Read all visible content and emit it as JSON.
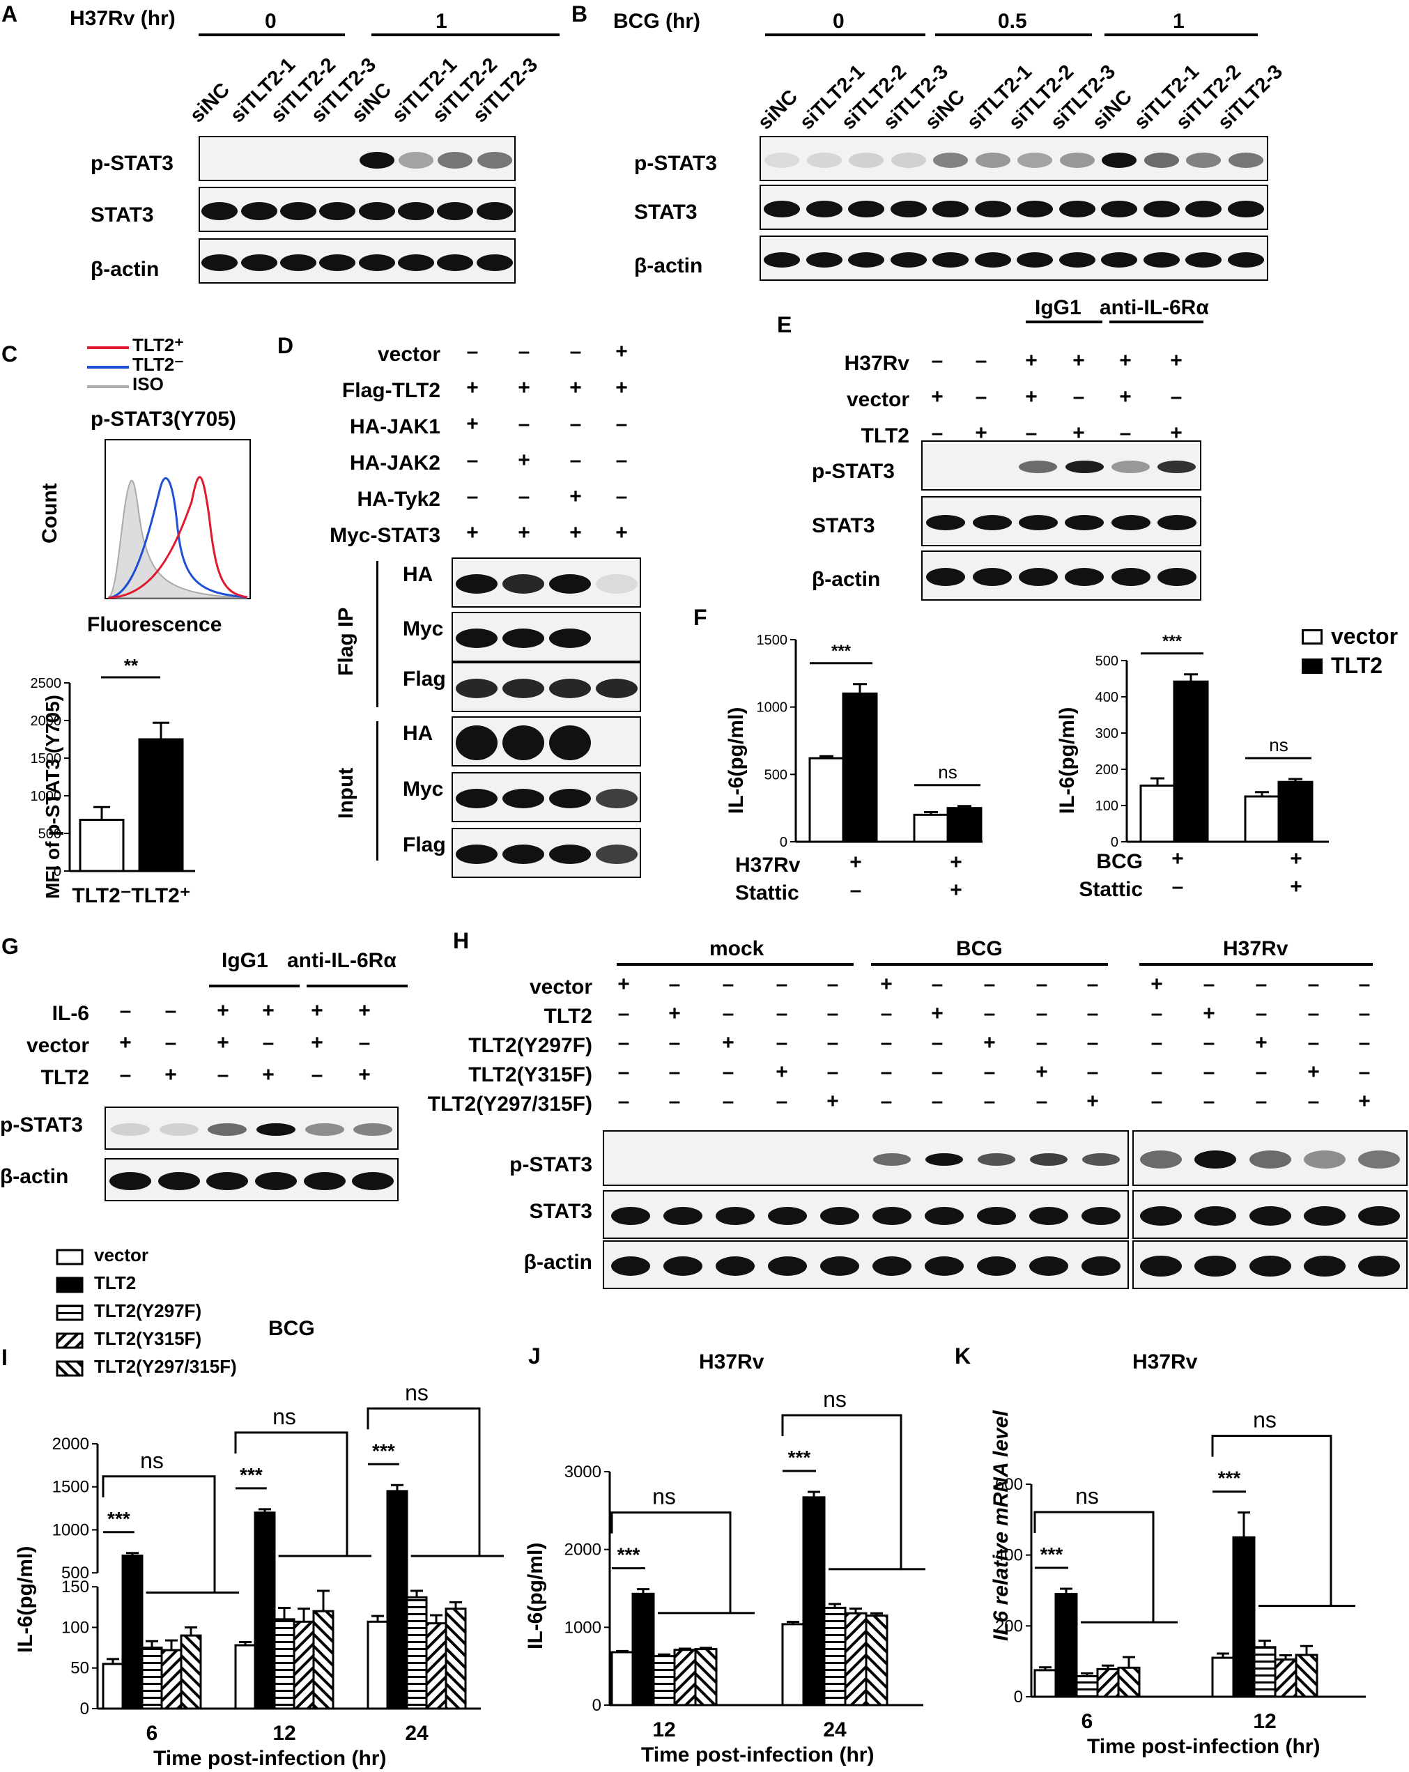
{
  "panels": {
    "A": {
      "letter": "A",
      "condition": "H37Rv (hr)",
      "groups": [
        "0",
        "1"
      ],
      "lanes": [
        "siNC",
        "siTLT2-1",
        "siTLT2-2",
        "siTLT2-3",
        "siNC",
        "siTLT2-1",
        "siTLT2-2",
        "siTLT2-3"
      ],
      "blots": [
        "p-STAT3",
        "STAT3",
        "β-actin"
      ]
    },
    "B": {
      "letter": "B",
      "condition": "BCG (hr)",
      "groups": [
        "0",
        "0.5",
        "1"
      ],
      "lanes": [
        "siNC",
        "siTLT2-1",
        "siTLT2-2",
        "siTLT2-3",
        "siNC",
        "siTLT2-1",
        "siTLT2-2",
        "siTLT2-3",
        "siNC",
        "siTLT2-1",
        "siTLT2-2",
        "siTLT2-3"
      ],
      "blots": [
        "p-STAT3",
        "STAT3",
        "β-actin"
      ]
    },
    "C": {
      "letter": "C",
      "legend": [
        "TLT2⁺",
        "TLT2⁻",
        "ISO"
      ],
      "hist_title": "p-STAT3(Y705)",
      "ylabel": "Count",
      "xlabel": "Fluorescence",
      "bar_ylabel": "MFI of p-STAT3 (Y705)",
      "sig": "**",
      "colors": {
        "tlt2_pos": "#e0192e",
        "tlt2_neg": "#1f4fd6",
        "iso": "#aaaaaa"
      }
    },
    "D": {
      "letter": "D",
      "rows": [
        {
          "name": "vector",
          "signs": [
            "–",
            "–",
            "–",
            "+"
          ]
        },
        {
          "name": "Flag-TLT2",
          "signs": [
            "+",
            "+",
            "+",
            "+"
          ]
        },
        {
          "name": "HA-JAK1",
          "signs": [
            "+",
            "–",
            "–",
            "–"
          ]
        },
        {
          "name": "HA-JAK2",
          "signs": [
            "–",
            "+",
            "–",
            "–"
          ]
        },
        {
          "name": "HA-Tyk2",
          "signs": [
            "–",
            "–",
            "+",
            "–"
          ]
        },
        {
          "name": "Myc-STAT3",
          "signs": [
            "+",
            "+",
            "+",
            "+"
          ]
        }
      ],
      "ip_label": "Flag IP",
      "input_label": "Input",
      "ip_blots": [
        "HA",
        "Myc",
        "Flag"
      ],
      "input_blots": [
        "HA",
        "Myc",
        "Flag"
      ]
    },
    "E": {
      "letter": "E",
      "groups": [
        "IgG1",
        "anti-IL-6Rα"
      ],
      "rows": [
        {
          "name": "H37Rv",
          "signs": [
            "–",
            "–",
            "+",
            "+",
            "+",
            "+"
          ]
        },
        {
          "name": "vector",
          "signs": [
            "+",
            "–",
            "+",
            "–",
            "+",
            "–"
          ]
        },
        {
          "name": "TLT2",
          "signs": [
            "–",
            "+",
            "–",
            "+",
            "–",
            "+"
          ]
        }
      ],
      "blots": [
        "p-STAT3",
        "STAT3",
        "β-actin"
      ]
    },
    "F": {
      "letter": "F",
      "legend": [
        "vector",
        "TLT2"
      ],
      "left_rows": [
        {
          "name": "H37Rv",
          "signs": [
            "+",
            "+"
          ]
        },
        {
          "name": "Stattic",
          "signs": [
            "–",
            "+"
          ]
        }
      ],
      "right_rows": [
        {
          "name": "BCG",
          "signs": [
            "+",
            "+"
          ]
        },
        {
          "name": "Stattic",
          "signs": [
            "–",
            "+"
          ]
        }
      ]
    },
    "G": {
      "letter": "G",
      "groups": [
        "IgG1",
        "anti-IL-6Rα"
      ],
      "rows": [
        {
          "name": "IL-6",
          "signs": [
            "–",
            "–",
            "+",
            "+",
            "+",
            "+"
          ]
        },
        {
          "name": "vector",
          "signs": [
            "+",
            "–",
            "+",
            "–",
            "+",
            "–"
          ]
        },
        {
          "name": "TLT2",
          "signs": [
            "–",
            "+",
            "–",
            "+",
            "–",
            "+"
          ]
        }
      ],
      "blots": [
        "p-STAT3",
        "β-actin"
      ]
    },
    "H": {
      "letter": "H",
      "groups": [
        "mock",
        "BCG",
        "H37Rv"
      ],
      "rows": [
        {
          "name": "vector",
          "signs": [
            "+",
            "–",
            "–",
            "–",
            "–",
            "+",
            "–",
            "–",
            "–",
            "–",
            "+",
            "–",
            "–",
            "–",
            "–"
          ]
        },
        {
          "name": "TLT2",
          "signs": [
            "–",
            "+",
            "–",
            "–",
            "–",
            "–",
            "+",
            "–",
            "–",
            "–",
            "–",
            "+",
            "–",
            "–",
            "–"
          ]
        },
        {
          "name": "TLT2(Y297F)",
          "signs": [
            "–",
            "–",
            "+",
            "–",
            "–",
            "–",
            "–",
            "+",
            "–",
            "–",
            "–",
            "–",
            "+",
            "–",
            "–"
          ]
        },
        {
          "name": "TLT2(Y315F)",
          "signs": [
            "–",
            "–",
            "–",
            "+",
            "–",
            "–",
            "–",
            "–",
            "+",
            "–",
            "–",
            "–",
            "–",
            "+",
            "–"
          ]
        },
        {
          "name": "TLT2(Y297/315F)",
          "signs": [
            "–",
            "–",
            "–",
            "–",
            "+",
            "–",
            "–",
            "–",
            "–",
            "+",
            "–",
            "–",
            "–",
            "–",
            "+"
          ]
        }
      ],
      "blots": [
        "p-STAT3",
        "STAT3",
        "β-actin"
      ]
    },
    "IJK_legend": [
      "vector",
      "TLT2",
      "TLT2(Y297F)",
      "TLT2(Y315F)",
      "TLT2(Y297/315F)"
    ],
    "I": {
      "letter": "I"
    },
    "J": {
      "letter": "J"
    },
    "K": {
      "letter": "K"
    }
  },
  "chart_data": [
    {
      "id": "C_bar",
      "type": "bar",
      "categories": [
        "TLT2⁻",
        "TLT2⁺"
      ],
      "values": [
        680,
        1750
      ],
      "errors": [
        170,
        220
      ],
      "ylabel": "MFI of p-STAT3 (Y705)",
      "ylim": [
        0,
        2500
      ],
      "yticks": [
        0,
        500,
        1000,
        1500,
        2000,
        2500
      ],
      "sig": "**"
    },
    {
      "id": "F_left",
      "type": "bar",
      "categories": [
        "1",
        "2"
      ],
      "series": [
        {
          "name": "vector",
          "values": [
            620,
            200
          ],
          "errors": [
            15,
            20
          ]
        },
        {
          "name": "TLT2",
          "values": [
            1100,
            250
          ],
          "errors": [
            70,
            15
          ]
        }
      ],
      "ylabel": "IL-6(pg/ml)",
      "ylim": [
        0,
        1500
      ],
      "yticks": [
        0,
        500,
        1000,
        1500
      ],
      "sig": [
        "***",
        "ns"
      ]
    },
    {
      "id": "F_right",
      "type": "bar",
      "categories": [
        "1",
        "2"
      ],
      "series": [
        {
          "name": "vector",
          "values": [
            155,
            125
          ],
          "errors": [
            20,
            12
          ]
        },
        {
          "name": "TLT2",
          "values": [
            442,
            165
          ],
          "errors": [
            20,
            8
          ]
        }
      ],
      "ylabel": "IL-6(pg/ml)",
      "ylim": [
        0,
        500
      ],
      "yticks": [
        0,
        100,
        200,
        300,
        400,
        500
      ],
      "sig": [
        "***",
        "ns"
      ]
    },
    {
      "id": "I",
      "type": "bar",
      "title": "BCG",
      "categories": [
        "6",
        "12",
        "24"
      ],
      "series": [
        {
          "name": "vector",
          "values": [
            55,
            78,
            107
          ],
          "errors": [
            6,
            4,
            7
          ]
        },
        {
          "name": "TLT2",
          "values": [
            700,
            1200,
            1450
          ],
          "errors": [
            30,
            40,
            70
          ]
        },
        {
          "name": "TLT2(Y297F)",
          "values": [
            75,
            110,
            137
          ],
          "errors": [
            8,
            14,
            8
          ]
        },
        {
          "name": "TLT2(Y315F)",
          "values": [
            72,
            107,
            105
          ],
          "errors": [
            12,
            16,
            10
          ]
        },
        {
          "name": "TLT2(Y297/315F)",
          "values": [
            90,
            120,
            123
          ],
          "errors": [
            10,
            25,
            8
          ]
        }
      ],
      "ylabel": "IL-6(pg/ml)",
      "xlabel": "Time post-infection (hr)",
      "axis_break": [
        150,
        500
      ],
      "yticks": [
        0,
        50,
        100,
        150,
        500,
        1000,
        1500,
        2000
      ],
      "sig": [
        "***",
        "ns"
      ]
    },
    {
      "id": "J",
      "type": "bar",
      "title": "H37Rv",
      "categories": [
        "12",
        "24"
      ],
      "series": [
        {
          "name": "vector",
          "values": [
            680,
            1040
          ],
          "errors": [
            15,
            30
          ]
        },
        {
          "name": "TLT2",
          "values": [
            1430,
            2670
          ],
          "errors": [
            60,
            70
          ]
        },
        {
          "name": "TLT2(Y297F)",
          "values": [
            630,
            1250
          ],
          "errors": [
            20,
            50
          ]
        },
        {
          "name": "TLT2(Y315F)",
          "values": [
            710,
            1180
          ],
          "errors": [
            15,
            60
          ]
        },
        {
          "name": "TLT2(Y297/315F)",
          "values": [
            720,
            1150
          ],
          "errors": [
            15,
            30
          ]
        }
      ],
      "ylabel": "IL-6(pg/ml)",
      "xlabel": "Time post-infection (hr)",
      "ylim": [
        0,
        3000
      ],
      "yticks": [
        0,
        1000,
        2000,
        3000
      ],
      "sig": [
        "***",
        "ns"
      ]
    },
    {
      "id": "K",
      "type": "bar",
      "title": "H37Rv",
      "categories": [
        "6",
        "12"
      ],
      "series": [
        {
          "name": "vector",
          "values": [
            75,
            110
          ],
          "errors": [
            8,
            12
          ]
        },
        {
          "name": "TLT2",
          "values": [
            290,
            450
          ],
          "errors": [
            15,
            70
          ]
        },
        {
          "name": "TLT2(Y297F)",
          "values": [
            58,
            140
          ],
          "errors": [
            8,
            18
          ]
        },
        {
          "name": "TLT2(Y315F)",
          "values": [
            78,
            105
          ],
          "errors": [
            10,
            12
          ]
        },
        {
          "name": "TLT2(Y297/315F)",
          "values": [
            82,
            118
          ],
          "errors": [
            30,
            25
          ]
        }
      ],
      "ylabel": "IL6 relative mRNA level",
      "xlabel": "Time post-infection (hr)",
      "ylim": [
        0,
        600
      ],
      "yticks": [
        0,
        200,
        400,
        600
      ],
      "sig": [
        "***",
        "ns"
      ]
    }
  ]
}
